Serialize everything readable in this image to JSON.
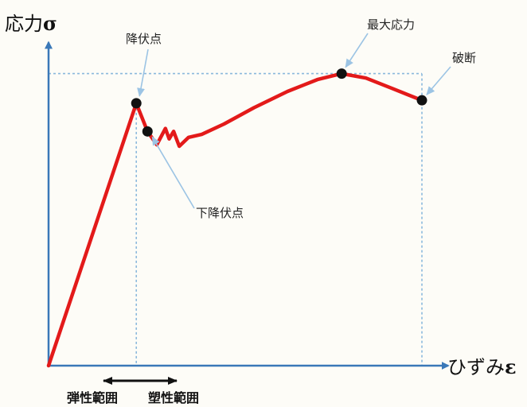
{
  "chart_data": {
    "type": "line",
    "title": "",
    "ylabel": "応力",
    "ylabel_symbol": "σ",
    "xlabel": "ひずみ",
    "xlabel_symbol": "ε",
    "series": [
      {
        "values_shape": "stress-strain curve",
        "color": "#e31a1a",
        "points": [
          [
            0,
            0
          ],
          [
            23.5,
            88.5
          ],
          [
            26.5,
            79
          ],
          [
            29,
            74.5
          ],
          [
            31.3,
            80
          ],
          [
            32.3,
            76.5
          ],
          [
            33.5,
            79
          ],
          [
            35,
            74
          ],
          [
            37.5,
            77
          ],
          [
            41,
            78
          ],
          [
            47,
            81.5
          ],
          [
            55,
            87
          ],
          [
            64,
            92.5
          ],
          [
            72,
            96.5
          ],
          [
            78.5,
            98.5
          ],
          [
            85,
            97
          ],
          [
            92,
            93.5
          ],
          [
            100,
            89.5
          ]
        ]
      }
    ],
    "annotations": [
      {
        "label": "降伏点",
        "x": 23.5,
        "y": 88.5
      },
      {
        "label": "下降伏点",
        "x": 26.5,
        "y": 79
      },
      {
        "label": "最大応力",
        "x": 78.5,
        "y": 98.5
      },
      {
        "label": "破断",
        "x": 100,
        "y": 89.5
      }
    ],
    "reference_lines": {
      "max_stress_y": 98.5,
      "yield_x": 23.5,
      "fracture_x": 100
    },
    "regions": [
      {
        "label": "弾性範囲"
      },
      {
        "label": "塑性範囲"
      }
    ],
    "xlim": [
      0,
      107
    ],
    "ylim": [
      0,
      109
    ],
    "grid": false,
    "legend": "none"
  },
  "colors": {
    "curve": "#e31a1a",
    "axis": "#3a78b8",
    "dotted": "#8ab8dc",
    "pointer": "#9cc4e4",
    "marker": "#111111"
  }
}
